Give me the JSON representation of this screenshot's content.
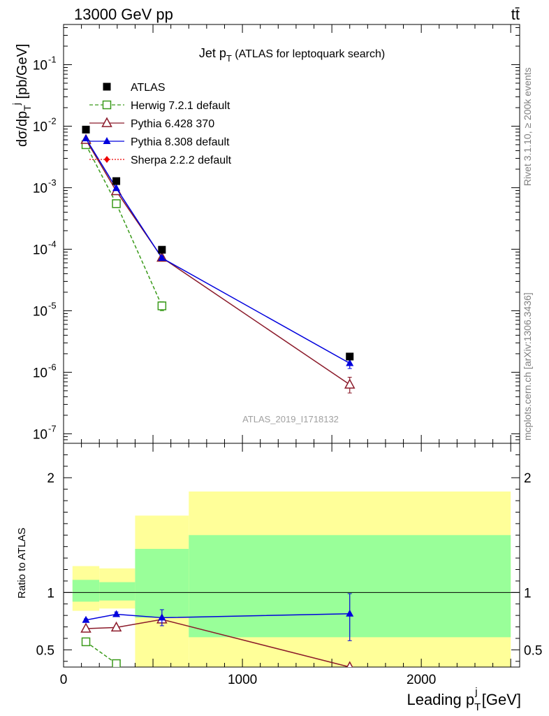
{
  "header": {
    "energy": "13000 GeV pp",
    "process": "tt̄",
    "plot_title": "Jet p",
    "plot_title_sub": "T",
    "plot_title_rest": " (ATLAS for leptoquark search)",
    "analysis": "ATLAS_2019_I1718132",
    "rivet": "Rivet 3.1.10, ≥ 200k events",
    "source": "mcplots.cern.ch [arXiv:1306.3436]"
  },
  "axes": {
    "ylabel_top": "dσ/dp",
    "ylabel_top_sub": "T",
    "ylabel_top_sup": "j",
    "ylabel_top_unit": " [pb/GeV]",
    "ylabel_bottom": "Ratio to ATLAS",
    "xlabel": "Leading p",
    "xlabel_sub": "T",
    "xlabel_sup": "j",
    "xlabel_unit": " [GeV]"
  },
  "chart_data": [
    {
      "type": "line",
      "panel": "main",
      "yscale": "log",
      "xlim": [
        0,
        2550
      ],
      "ylim": [
        7e-08,
        0.45
      ],
      "ytick_labels": [
        "10",
        "10",
        "10",
        "10",
        "10",
        "10",
        "10"
      ],
      "ytick_exponents": [
        "-7",
        "-6",
        "-5",
        "-4",
        "-3",
        "-2",
        "-1"
      ],
      "ytick_values": [
        1e-07,
        1e-06,
        1e-05,
        0.0001,
        0.001,
        0.01,
        0.1
      ],
      "legend_position": "top-left",
      "series": [
        {
          "name": "ATLAS",
          "color": "#000000",
          "marker": "square-filled",
          "x": [
            125,
            295,
            550,
            1600
          ],
          "y": [
            0.0088,
            0.00128,
            9.8e-05,
            1.8e-06
          ]
        },
        {
          "name": "Herwig 7.2.1 default",
          "color": "#3a9a1a",
          "marker": "square-open",
          "dash": true,
          "x": [
            125,
            295,
            550
          ],
          "y": [
            0.005,
            0.00055,
            1.2e-05
          ],
          "err_lo": [
            0.0049,
            0.00052,
            1e-05
          ],
          "err_hi": [
            0.0051,
            0.00058,
            1.4e-05
          ]
        },
        {
          "name": "Pythia 6.428 370",
          "color": "#8b1a2a",
          "marker": "triangle-open",
          "x": [
            125,
            295,
            550,
            1600
          ],
          "y": [
            0.006,
            0.00088,
            7.3e-05,
            6.3e-07
          ],
          "err_lo": [
            0.0059,
            0.00086,
            6.9e-05,
            4.6e-07
          ],
          "err_hi": [
            0.0061,
            0.0009,
            7.7e-05,
            8.3e-07
          ]
        },
        {
          "name": "Pythia 8.308 default",
          "color": "#0000dd",
          "marker": "triangle-filled",
          "x": [
            125,
            295,
            550,
            1600
          ],
          "y": [
            0.0063,
            0.00098,
            7.2e-05,
            1.4e-06
          ],
          "err_lo": [
            0.0062,
            0.00096,
            6.8e-05,
            1.15e-06
          ],
          "err_hi": [
            0.0064,
            0.001,
            7.6e-05,
            1.65e-06
          ]
        },
        {
          "name": "Sherpa 2.2.2 default",
          "color": "#ee0000",
          "marker": "diamond-filled",
          "dotted": true,
          "x": [],
          "y": []
        }
      ]
    },
    {
      "type": "line",
      "panel": "ratio",
      "xlim": [
        0,
        2550
      ],
      "ylim": [
        0.35,
        2.3
      ],
      "ytick_labels": [
        "0.5",
        "1",
        "2"
      ],
      "ytick_values": [
        0.5,
        1,
        2
      ],
      "xtick_labels": [
        "0",
        "1000",
        "2000"
      ],
      "xtick_values": [
        0,
        1000,
        2000
      ],
      "bands": [
        {
          "x0": 50,
          "x1": 200,
          "green_lo": 0.92,
          "green_hi": 1.11,
          "yellow_lo": 0.84,
          "yellow_hi": 1.23
        },
        {
          "x0": 200,
          "x1": 400,
          "green_lo": 0.93,
          "green_hi": 1.09,
          "yellow_lo": 0.86,
          "yellow_hi": 1.21
        },
        {
          "x0": 400,
          "x1": 700,
          "green_lo": 0.78,
          "green_hi": 1.38,
          "yellow_lo": 0.3,
          "yellow_hi": 1.67
        },
        {
          "x0": 700,
          "x1": 2500,
          "green_lo": 0.61,
          "green_hi": 1.5,
          "yellow_lo": 0.3,
          "yellow_hi": 1.88
        }
      ],
      "series": [
        {
          "name": "Herwig 7.2.1 default",
          "color": "#3a9a1a",
          "marker": "square-open",
          "dash": true,
          "x": [
            125,
            295
          ],
          "y": [
            0.57,
            0.38
          ]
        },
        {
          "name": "Pythia 6.428 370",
          "color": "#8b1a2a",
          "marker": "triangle-open",
          "x": [
            125,
            295,
            550,
            1600
          ],
          "y": [
            0.685,
            0.695,
            0.765,
            0.35
          ]
        },
        {
          "name": "Pythia 8.308 default",
          "color": "#0000dd",
          "marker": "triangle-filled",
          "x": [
            125,
            295,
            550,
            1600
          ],
          "y": [
            0.76,
            0.81,
            0.78,
            0.815
          ],
          "err_lo": [
            0.75,
            0.79,
            0.71,
            0.58
          ],
          "err_hi": [
            0.77,
            0.83,
            0.85,
            0.99
          ]
        }
      ]
    }
  ]
}
